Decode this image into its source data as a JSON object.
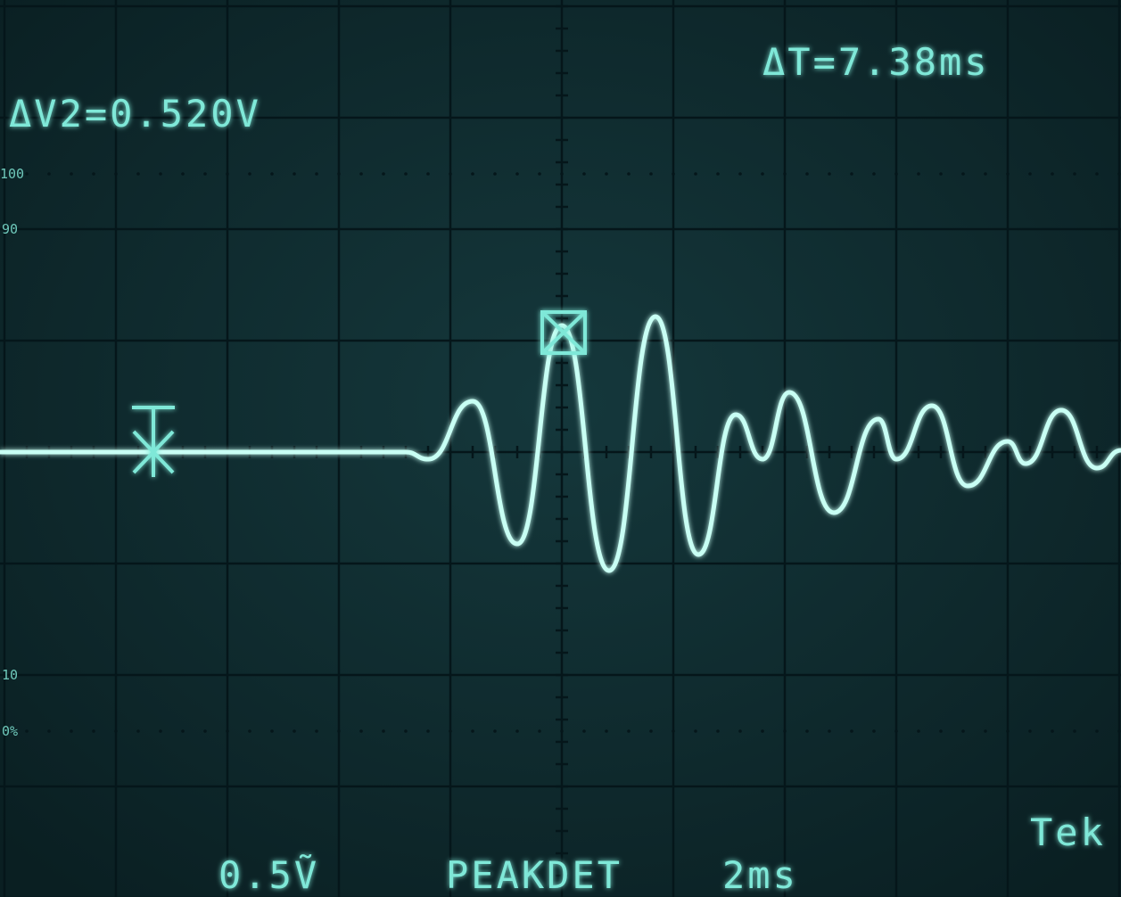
{
  "readouts": {
    "delta_v": "ΔV2=0.520V",
    "delta_t": "ΔT=7.38ms"
  },
  "graticule_labels": {
    "top": "100",
    "upper": "90",
    "lower": "10",
    "bottom": "0%"
  },
  "status": {
    "scale": "0.5Ṽ",
    "mode": "PEAKDET",
    "timebase": "2ms",
    "brand": "Tek"
  }
}
